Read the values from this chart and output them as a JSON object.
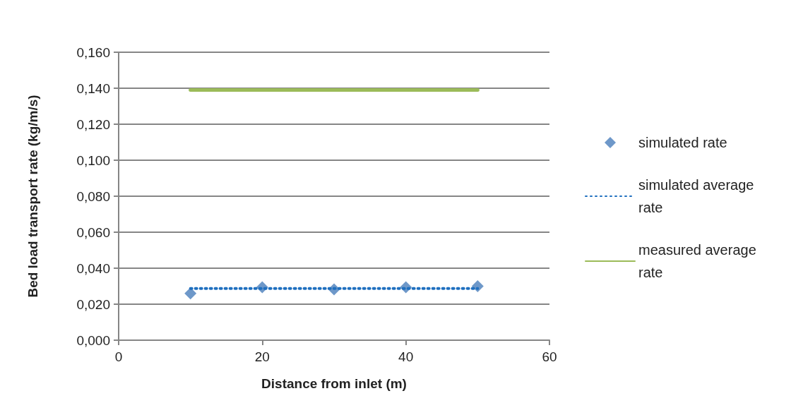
{
  "chart_data": {
    "type": "scatter",
    "xlabel": "Distance from inlet (m)",
    "ylabel": "Bed load transport rate (kg/m/s)",
    "x": [
      10,
      20,
      30,
      40,
      50
    ],
    "series": [
      {
        "name": "simulated rate",
        "color": "#4a7ebb",
        "marker": "diamond",
        "values": [
          0.026,
          0.0294,
          0.0282,
          0.0294,
          0.03
        ]
      },
      {
        "name": "simulated average rate",
        "type": "line",
        "color": "#1f6fbf",
        "marker": "none",
        "line_style": "dotted",
        "values": [
          0.0287,
          0.0287,
          0.0287,
          0.0287,
          0.0287
        ]
      },
      {
        "name": "measured average rate",
        "type": "line",
        "color": "#9bbb59",
        "marker": "none",
        "line_style": "solid",
        "values": [
          0.139,
          0.139,
          0.139,
          0.139,
          0.139
        ]
      }
    ],
    "xlim": [
      0,
      60
    ],
    "xticks": [
      0,
      20,
      40,
      60
    ],
    "ylim": [
      0,
      0.16
    ],
    "yticks": [
      {
        "value": 0,
        "label": "0,000"
      },
      {
        "value": 0.02,
        "label": "0,020"
      },
      {
        "value": 0.04,
        "label": "0,040"
      },
      {
        "value": 0.06,
        "label": "0,060"
      },
      {
        "value": 0.08,
        "label": "0,080"
      },
      {
        "value": 0.1,
        "label": "0,100"
      },
      {
        "value": 0.12,
        "label": "0,120"
      },
      {
        "value": 0.14,
        "label": "0,140"
      },
      {
        "value": 0.16,
        "label": "0,160"
      }
    ],
    "grid": "y",
    "legend": "right"
  }
}
